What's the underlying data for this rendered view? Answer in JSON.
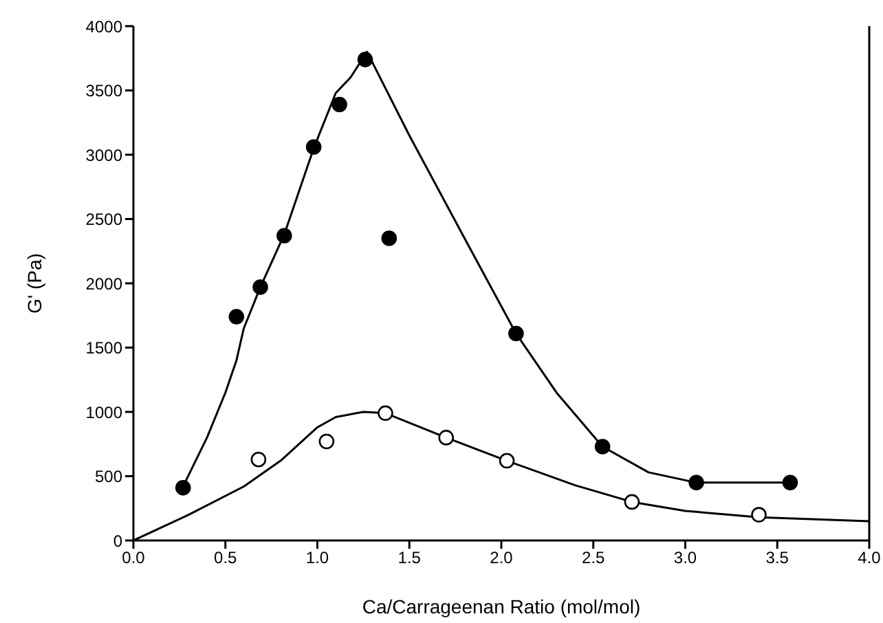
{
  "chart_data": {
    "type": "scatter",
    "xlabel": "Ca/Carrageenan Ratio (mol/mol)",
    "ylabel": "G' (Pa)",
    "xlim": [
      0,
      4
    ],
    "xticks": [
      {
        "value": 0,
        "label": "0.0"
      },
      0.5,
      {
        "value": 1,
        "label": "1.0"
      },
      1.5,
      {
        "value": 2,
        "label": "2.0"
      },
      2.5,
      {
        "value": 3,
        "label": "3.0"
      },
      3.5,
      {
        "value": 4,
        "label": "4.0"
      }
    ],
    "ylim": [
      0,
      4000
    ],
    "yticks": [
      0,
      500,
      1000,
      1500,
      2000,
      2500,
      3000,
      3500,
      4000
    ],
    "grid": false,
    "legend": false,
    "series": [
      {
        "color": "#000000",
        "marker": "circle",
        "x": [
          0.27,
          0.56,
          0.69,
          0.82,
          0.98,
          1.12,
          1.26,
          1.39,
          2.08,
          2.55,
          3.06,
          3.57
        ],
        "values": [
          410,
          1740,
          1970,
          2370,
          3060,
          3390,
          3740,
          2350,
          1610,
          730,
          450,
          450
        ]
      },
      {
        "color": "#ffffff",
        "marker": "circle",
        "x": [
          0.68,
          1.05,
          1.37,
          1.7,
          2.03,
          2.71,
          3.4
        ],
        "values": [
          630,
          770,
          990,
          800,
          620,
          300,
          200
        ]
      },
      {
        "type": "line",
        "color": "#000000",
        "marker": "none",
        "x": [
          0.27,
          0.4,
          0.5,
          0.56,
          0.6,
          0.69,
          0.82,
          0.98,
          1.1,
          1.18,
          1.27,
          1.5,
          1.8,
          2.08,
          2.3,
          2.55,
          2.8,
          3.06,
          3.3,
          3.57
        ],
        "values": [
          420,
          800,
          1150,
          1400,
          1650,
          1970,
          2380,
          3050,
          3480,
          3600,
          3800,
          3150,
          2350,
          1610,
          1150,
          730,
          530,
          450,
          450,
          450
        ]
      },
      {
        "type": "line",
        "color": "#000000",
        "marker": "none",
        "x": [
          0,
          0.3,
          0.6,
          0.8,
          1.0,
          1.1,
          1.25,
          1.37,
          1.7,
          2.03,
          2.4,
          2.71,
          3.0,
          3.4,
          4.0
        ],
        "values": [
          0,
          200,
          420,
          620,
          880,
          960,
          1000,
          990,
          800,
          620,
          430,
          300,
          230,
          180,
          150
        ]
      }
    ]
  }
}
